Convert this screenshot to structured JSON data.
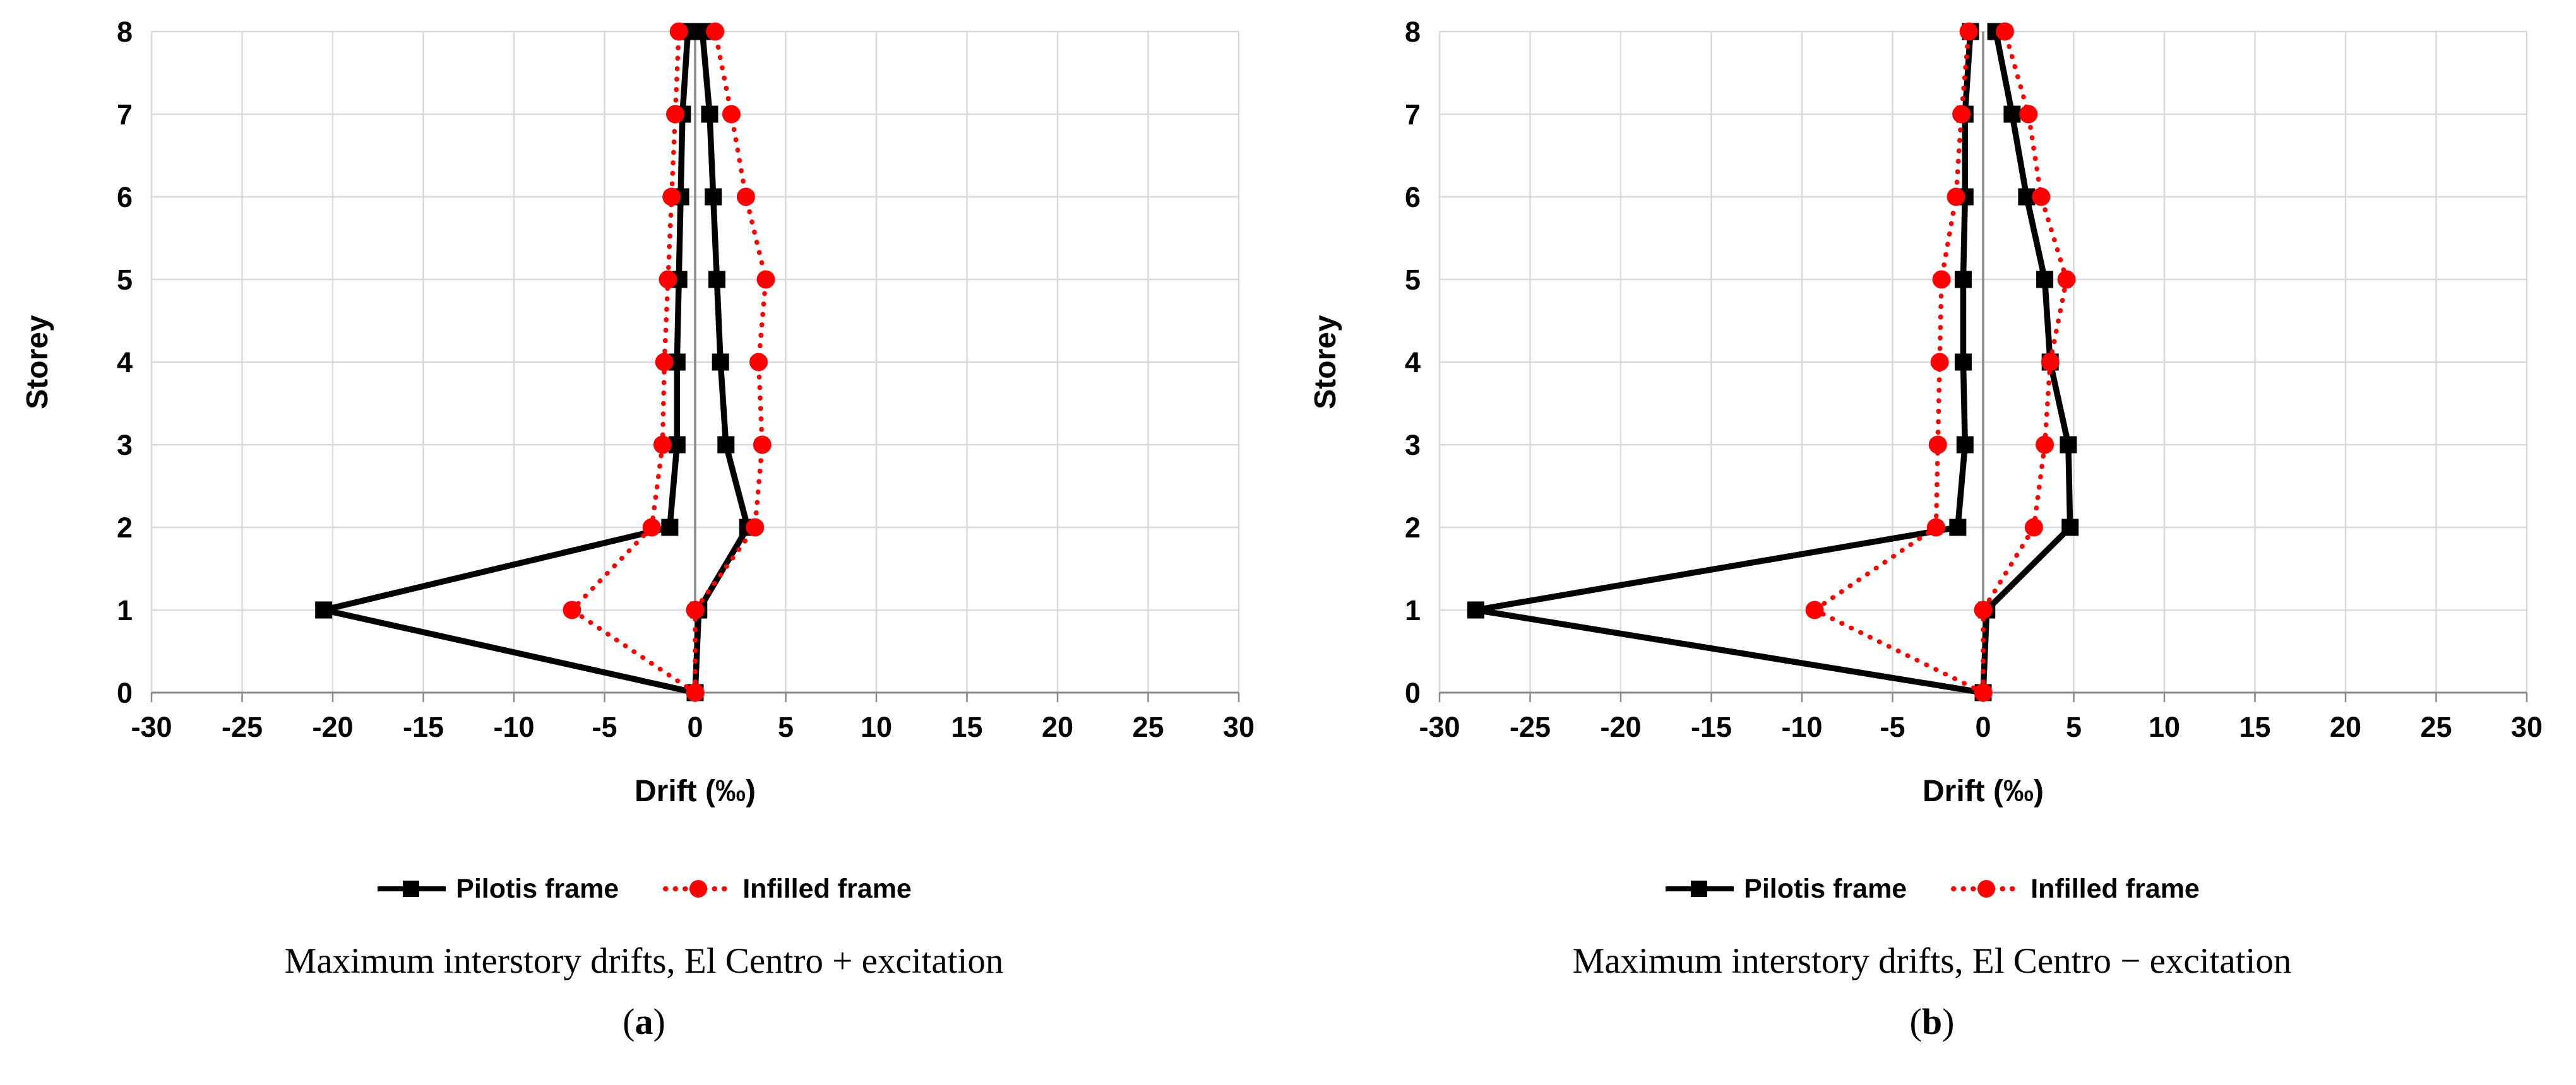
{
  "page": {
    "background": "#ffffff"
  },
  "chart_data": [
    {
      "type": "line",
      "caption": "Maximum interstory drifts, El Centro + excitation",
      "panel_label": {
        "open": "(",
        "letter": "a",
        "close": ")"
      },
      "xlabel": "Drift (‰)",
      "ylabel": "Storey",
      "xlim": [
        -30,
        30
      ],
      "xticks": [
        -30,
        -25,
        -20,
        -15,
        -10,
        -5,
        0,
        5,
        10,
        15,
        20,
        25,
        30
      ],
      "ylim": [
        0,
        8
      ],
      "yticks": [
        0,
        1,
        2,
        3,
        4,
        5,
        6,
        7,
        8
      ],
      "grid": true,
      "legend_position": "bottom",
      "grid_color": "#d9d9d9",
      "axis_color": "#898989",
      "storeys": [
        0,
        1,
        2,
        3,
        4,
        5,
        6,
        7,
        8
      ],
      "series": [
        {
          "name": "Pilotis frame",
          "color": "#000000",
          "marker": "square",
          "line": "solid",
          "negative": [
            0,
            -20.5,
            -1.4,
            -1.0,
            -1.0,
            -0.9,
            -0.8,
            -0.7,
            -0.4
          ],
          "positive": [
            0,
            0.2,
            2.9,
            1.7,
            1.4,
            1.2,
            1.0,
            0.8,
            0.4
          ]
        },
        {
          "name": "Infilled frame",
          "color": "#ff0000",
          "marker": "circle",
          "line": "dotted",
          "negative": [
            0,
            -6.8,
            -2.4,
            -1.8,
            -1.7,
            -1.5,
            -1.3,
            -1.1,
            -0.9
          ],
          "positive": [
            0,
            0.0,
            3.3,
            3.7,
            3.5,
            3.9,
            2.8,
            2.0,
            1.1
          ]
        }
      ]
    },
    {
      "type": "line",
      "caption": "Maximum interstory drifts, El Centro − excitation",
      "panel_label": {
        "open": "(",
        "letter": "b",
        "close": ")"
      },
      "xlabel": "Drift (‰)",
      "ylabel": "Storey",
      "xlim": [
        -30,
        30
      ],
      "xticks": [
        -30,
        -25,
        -20,
        -15,
        -10,
        -5,
        0,
        5,
        10,
        15,
        20,
        25,
        30
      ],
      "ylim": [
        0,
        8
      ],
      "yticks": [
        0,
        1,
        2,
        3,
        4,
        5,
        6,
        7,
        8
      ],
      "grid": true,
      "legend_position": "bottom",
      "grid_color": "#d9d9d9",
      "axis_color": "#898989",
      "storeys": [
        0,
        1,
        2,
        3,
        4,
        5,
        6,
        7,
        8
      ],
      "series": [
        {
          "name": "Pilotis frame",
          "color": "#000000",
          "marker": "square",
          "line": "solid",
          "negative": [
            0,
            -28.0,
            -1.4,
            -1.0,
            -1.1,
            -1.1,
            -1.0,
            -1.0,
            -0.7
          ],
          "positive": [
            0,
            0.2,
            4.8,
            4.7,
            3.7,
            3.4,
            2.4,
            1.6,
            0.7
          ]
        },
        {
          "name": "Infilled frame",
          "color": "#ff0000",
          "marker": "circle",
          "line": "dotted",
          "negative": [
            0,
            -9.3,
            -2.6,
            -2.5,
            -2.4,
            -2.3,
            -1.5,
            -1.2,
            -0.8
          ],
          "positive": [
            0,
            0.0,
            2.8,
            3.4,
            3.7,
            4.6,
            3.2,
            2.5,
            1.2
          ]
        }
      ]
    }
  ]
}
